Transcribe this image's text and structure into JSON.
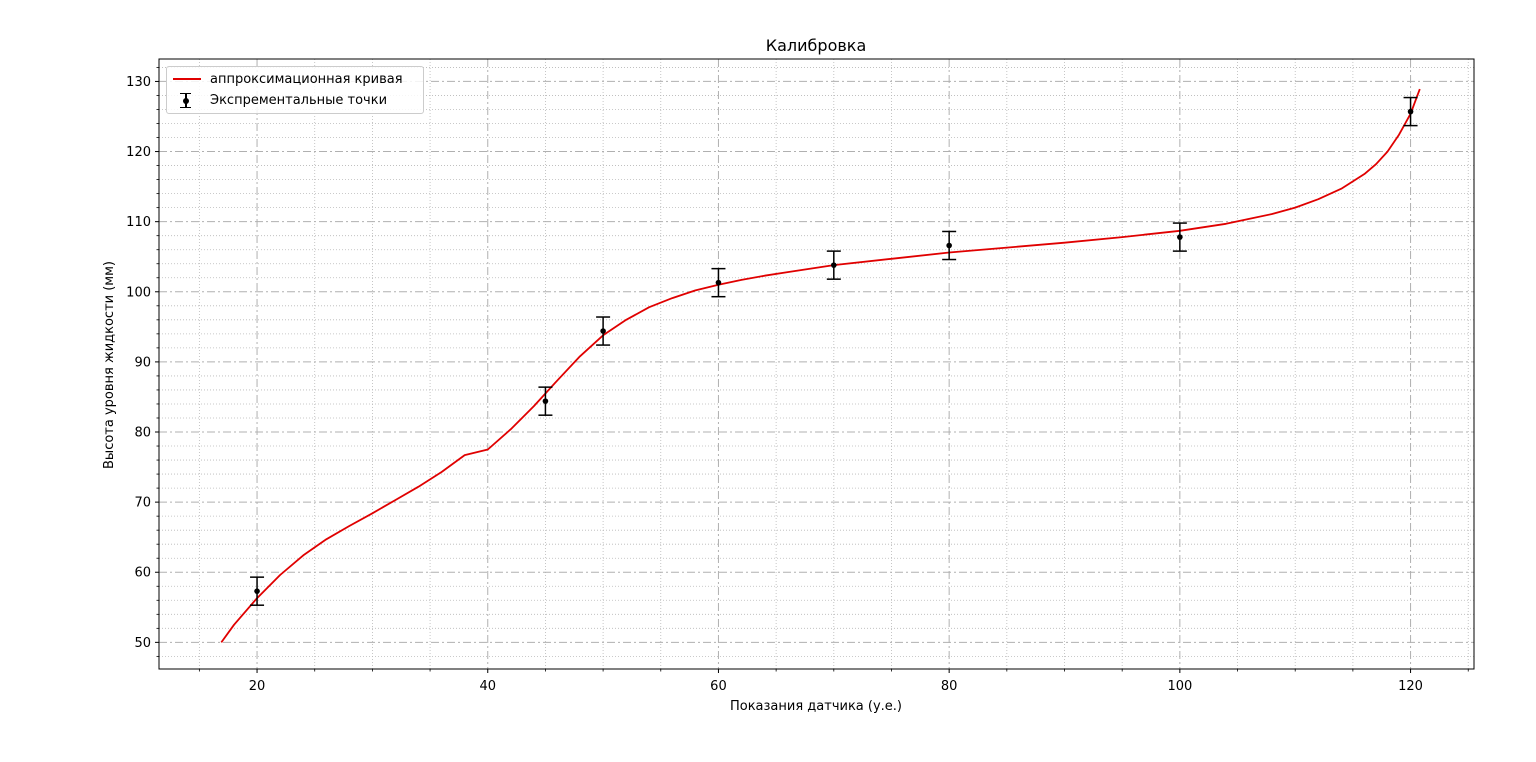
{
  "chart_data": {
    "type": "line",
    "title": "Калибровка",
    "xlabel": "Показания датчика (у.е.)",
    "ylabel": "Высота уровня жидкости (мм)",
    "xlim": [
      11.5,
      125.5
    ],
    "ylim": [
      46.2,
      133.2
    ],
    "x_ticks": [
      20,
      40,
      60,
      80,
      100,
      120
    ],
    "y_ticks": [
      50,
      60,
      70,
      80,
      90,
      100,
      110,
      120,
      130
    ],
    "grid": true,
    "legend_position": "top-left",
    "series": [
      {
        "name": "аппроксимационная кривая",
        "kind": "line",
        "color": "#e00000",
        "x": [
          16.9,
          18,
          20,
          22,
          24,
          26,
          28,
          30,
          32,
          34,
          36,
          38,
          40,
          42,
          44,
          46,
          48,
          50,
          52,
          54,
          56,
          58,
          60,
          62,
          64,
          66,
          68,
          70,
          75,
          80,
          85,
          90,
          95,
          100,
          102,
          104,
          106,
          108,
          110,
          112,
          114,
          116,
          117,
          118,
          119,
          120,
          120.8
        ],
        "y": [
          50.0,
          52.5,
          56.3,
          59.6,
          62.4,
          64.7,
          66.6,
          68.4,
          70.3,
          72.2,
          74.3,
          76.7,
          77.5,
          80.4,
          83.7,
          87.3,
          90.8,
          93.8,
          96.0,
          97.8,
          99.1,
          100.2,
          101.0,
          101.7,
          102.3,
          102.8,
          103.3,
          103.8,
          104.7,
          105.6,
          106.3,
          107.0,
          107.8,
          108.7,
          109.2,
          109.7,
          110.4,
          111.1,
          112.0,
          113.2,
          114.7,
          116.8,
          118.2,
          120.0,
          122.4,
          125.4,
          128.9
        ]
      },
      {
        "name": "Экспрементальные точки",
        "kind": "errorbar",
        "color": "#000000",
        "x": [
          20,
          45,
          50,
          60,
          70,
          80,
          100,
          120
        ],
        "y": [
          57.3,
          84.4,
          94.4,
          101.3,
          103.8,
          106.6,
          107.8,
          125.7
        ],
        "yerr": 2
      }
    ]
  }
}
